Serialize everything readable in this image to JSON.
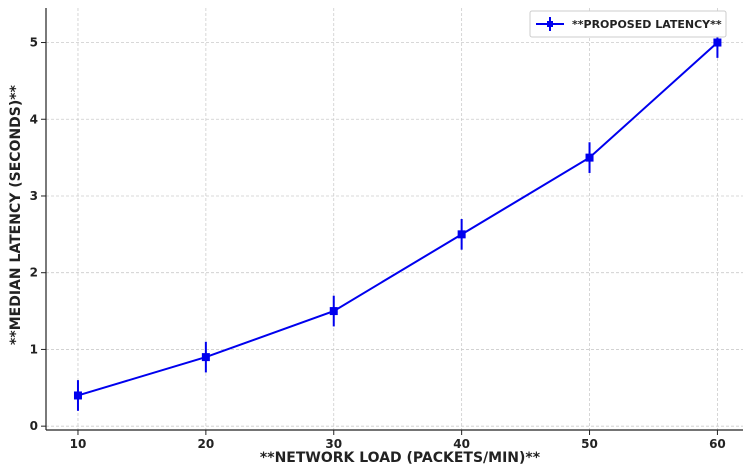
{
  "chart_data": {
    "type": "line",
    "xlabel": "**NETWORK LOAD (PACKETS/MIN)**",
    "ylabel": "**MEDIAN LATENCY (SECONDS)**",
    "x": [
      10,
      20,
      30,
      40,
      50,
      60
    ],
    "xticks": [
      "10",
      "20",
      "30",
      "40",
      "50",
      "60"
    ],
    "yticks": [
      "0",
      "1",
      "2",
      "3",
      "4",
      "5"
    ],
    "xlim": [
      7.5,
      62
    ],
    "ylim": [
      -0.05,
      5.45
    ],
    "grid": true,
    "legend_position": "top-right",
    "series": [
      {
        "name": "**PROPOSED LATENCY**",
        "color": "#0000ee",
        "values": [
          0.4,
          0.9,
          1.5,
          2.5,
          3.5,
          5.0
        ],
        "errors": [
          0.2,
          0.2,
          0.2,
          0.2,
          0.2,
          0.2
        ]
      }
    ]
  }
}
